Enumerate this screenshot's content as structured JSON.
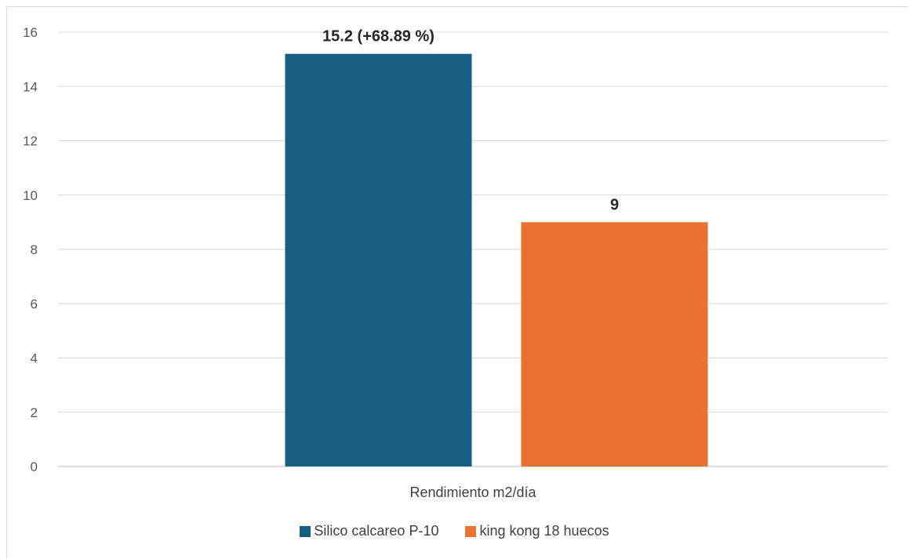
{
  "chart_data": {
    "type": "bar",
    "categories": [
      "Rendimiento m2/día"
    ],
    "series": [
      {
        "name": "Silico calcareo P-10",
        "values": [
          15.2
        ],
        "label": "15.2 (+68.89 %)",
        "color": "#175f82"
      },
      {
        "name": "king kong 18 huecos",
        "values": [
          9
        ],
        "label": "9",
        "color": "#e97132"
      }
    ],
    "ylim": [
      0,
      16
    ],
    "yticks": [
      0,
      2,
      4,
      6,
      8,
      10,
      12,
      14,
      16
    ],
    "title": "",
    "xlabel": "",
    "ylabel": "",
    "grid": true,
    "legend_position": "bottom"
  }
}
